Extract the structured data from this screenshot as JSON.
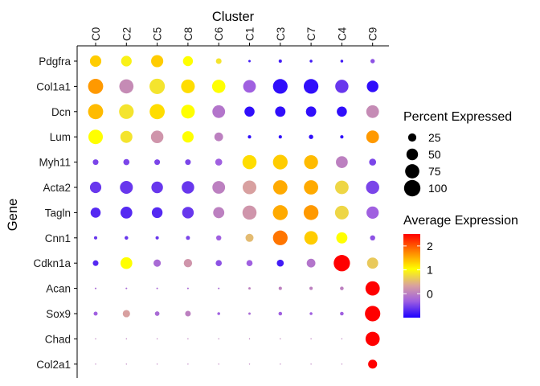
{
  "chart_data": {
    "type": "dotplot",
    "xlabel": "Cluster",
    "ylabel": "Gene",
    "clusters": [
      "C0",
      "C2",
      "C5",
      "C8",
      "C6",
      "C1",
      "C3",
      "C7",
      "C4",
      "C9"
    ],
    "genes": [
      "Pdgfra",
      "Col1a1",
      "Dcn",
      "Lum",
      "Myh11",
      "Acta2",
      "Tagln",
      "Cnn1",
      "Cdkn1a",
      "Acan",
      "Sox9",
      "Chad",
      "Col2a1"
    ],
    "percent_expressed": [
      [
        48,
        42,
        55,
        37,
        12,
        2,
        4,
        3,
        3,
        7
      ],
      [
        85,
        75,
        88,
        70,
        66,
        60,
        80,
        80,
        65,
        50
      ],
      [
        85,
        80,
        85,
        70,
        60,
        38,
        40,
        40,
        38,
        60
      ],
      [
        78,
        54,
        58,
        48,
        28,
        4,
        4,
        7,
        4,
        60
      ],
      [
        12,
        14,
        12,
        12,
        18,
        74,
        80,
        72,
        52,
        18
      ],
      [
        48,
        62,
        50,
        58,
        60,
        70,
        76,
        76,
        68,
        65
      ],
      [
        38,
        52,
        43,
        50,
        46,
        74,
        83,
        82,
        70,
        56
      ],
      [
        4,
        5,
        4,
        6,
        10,
        24,
        80,
        68,
        46,
        10
      ],
      [
        12,
        52,
        20,
        26,
        14,
        14,
        18,
        28,
        99,
        46
      ],
      [
        1,
        1,
        1,
        1,
        1,
        2,
        4,
        4,
        5,
        76
      ],
      [
        6,
        20,
        8,
        12,
        3,
        2,
        5,
        3,
        5,
        88
      ],
      [
        0.5,
        0.5,
        0.5,
        0.5,
        0.5,
        0.5,
        0.5,
        0.5,
        0.5,
        75
      ],
      [
        0.5,
        0.5,
        0.5,
        0.5,
        0.5,
        0.5,
        0.5,
        0.5,
        0.5,
        30
      ]
    ],
    "average_expression": [
      [
        1.3,
        0.9,
        1.3,
        1.0,
        0.8,
        -0.8,
        -0.8,
        -0.8,
        -0.8,
        -0.4
      ],
      [
        1.6,
        0.1,
        0.8,
        1.2,
        1.0,
        -0.3,
        -0.9,
        -0.9,
        -0.6,
        -0.9
      ],
      [
        1.4,
        0.8,
        1.2,
        1.0,
        -0.1,
        -0.9,
        -0.9,
        -0.9,
        -0.9,
        0.1
      ],
      [
        1.0,
        0.8,
        0.2,
        1.0,
        0.0,
        -0.9,
        -0.9,
        -0.9,
        -0.9,
        1.6
      ],
      [
        -0.5,
        -0.5,
        -0.5,
        -0.5,
        -0.3,
        1.2,
        1.3,
        1.4,
        0.0,
        -0.5
      ],
      [
        -0.6,
        -0.6,
        -0.6,
        -0.6,
        0.0,
        0.3,
        1.5,
        1.5,
        0.7,
        -0.5
      ],
      [
        -0.7,
        -0.7,
        -0.7,
        -0.6,
        0.0,
        0.2,
        1.5,
        1.6,
        0.7,
        -0.3
      ],
      [
        -0.6,
        -0.6,
        -0.6,
        -0.5,
        -0.3,
        0.5,
        1.8,
        1.3,
        1.0,
        -0.4
      ],
      [
        -0.7,
        1.0,
        -0.2,
        0.2,
        -0.4,
        -0.3,
        -0.8,
        -0.1,
        2.4,
        0.6
      ],
      [
        -0.2,
        -0.2,
        -0.2,
        -0.2,
        -0.2,
        0.0,
        0.0,
        0.0,
        0.0,
        2.4
      ],
      [
        -0.3,
        0.3,
        -0.2,
        0.0,
        -0.3,
        -0.2,
        -0.3,
        -0.3,
        -0.3,
        2.4
      ],
      [
        0.0,
        0.0,
        0.0,
        0.0,
        0.0,
        0.0,
        0.0,
        0.0,
        0.0,
        2.4
      ],
      [
        0.0,
        0.0,
        0.0,
        0.0,
        0.0,
        0.0,
        0.0,
        0.0,
        0.0,
        2.4
      ]
    ],
    "legend_size": {
      "title": "Percent Expressed",
      "values": [
        25,
        50,
        75,
        100
      ]
    },
    "legend_color": {
      "title": "Average Expression",
      "ticks": [
        0,
        1,
        2
      ],
      "range": [
        -1,
        2.5
      ],
      "colors": [
        "#1d00ff",
        "#a060e0",
        "#d8a0a0",
        "#ffff00",
        "#ff8800",
        "#ff0000"
      ]
    },
    "grid": false,
    "legend_placement": "right"
  }
}
